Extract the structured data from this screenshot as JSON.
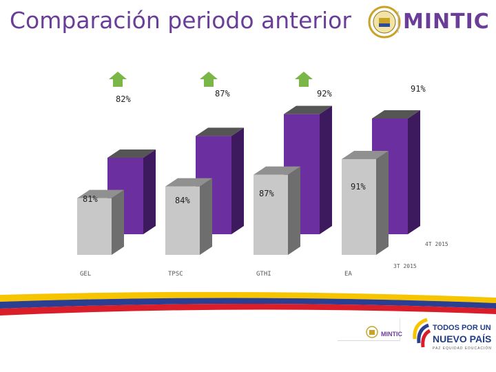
{
  "header": {
    "title": "Comparación periodo anterior",
    "brand": "MINTIC"
  },
  "chart_data": {
    "type": "bar",
    "categories": [
      "GEL",
      "TPSC",
      "GTHI",
      "EA"
    ],
    "series": [
      {
        "name": "4T 2015",
        "values": [
          82,
          87,
          92,
          91
        ],
        "labels": [
          "82%",
          "87%",
          "92%",
          "91%"
        ],
        "color": "#6b2fa0"
      },
      {
        "name": "3T 2015",
        "values": [
          81,
          84,
          87,
          91
        ],
        "labels": [
          "81%",
          "84%",
          "87%",
          "91%"
        ],
        "color": "#c8c8c8"
      }
    ],
    "increase_arrows": [
      "GEL",
      "TPSC",
      "GTHI"
    ],
    "arrow_color": "#7ab648"
  },
  "footer": {
    "mintic_small": "MINTIC",
    "slogan_line1": "TODOS POR UN",
    "slogan_line2": "NUEVO PAÍS",
    "slogan_line3": "PAZ EQUIDAD EDUCACIÓN"
  },
  "colors": {
    "purple": "#6b2fa0",
    "purple_dark": "#3d1a5e",
    "gray": "#c8c8c8",
    "gray_dark": "#6e6e6e",
    "title": "#6a3d98"
  }
}
